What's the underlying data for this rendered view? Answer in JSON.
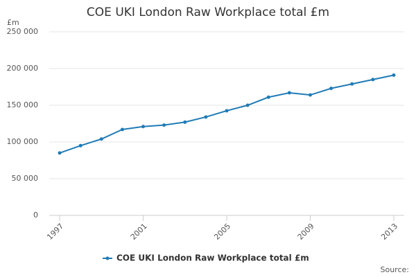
{
  "chart_data": {
    "type": "line",
    "title": "COE UKI London Raw Workplace total £m",
    "y_label": "£m",
    "source": "Source:",
    "x": [
      1997,
      1998,
      1999,
      2000,
      2001,
      2002,
      2003,
      2004,
      2005,
      2006,
      2007,
      2008,
      2009,
      2010,
      2011,
      2012,
      2013
    ],
    "series": [
      {
        "name": "COE UKI London Raw Workplace total £m",
        "color": "#1f7bb5",
        "values": [
          85000,
          95000,
          104000,
          117000,
          121000,
          123000,
          127000,
          134000,
          142500,
          150000,
          161000,
          167000,
          164000,
          173000,
          179000,
          185000,
          191000
        ]
      }
    ],
    "xlim": [
      1996.5,
      2013.5
    ],
    "xticks": [
      1997,
      2001,
      2005,
      2009,
      2013
    ],
    "ylim": [
      0,
      250000
    ],
    "yticks": [
      0,
      {
        "value": 50000,
        "label": "50 000"
      },
      {
        "value": 100000,
        "label": "100 000"
      },
      {
        "value": 150000,
        "label": "150 000"
      },
      {
        "value": 200000,
        "label": "200 000"
      },
      {
        "value": 250000,
        "label": "250 000"
      }
    ],
    "grid": true,
    "legend": "bottom"
  }
}
